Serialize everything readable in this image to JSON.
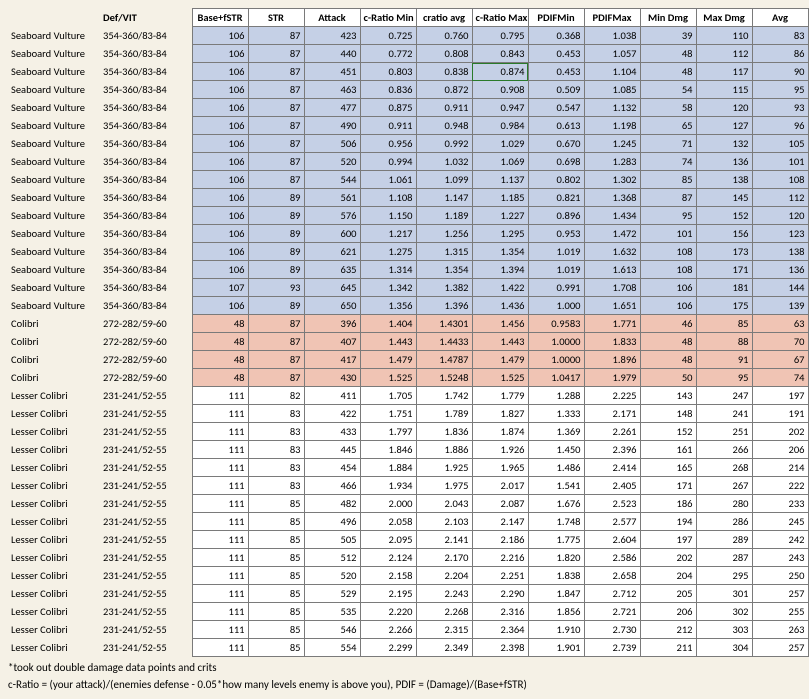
{
  "columns": [
    "",
    "Def/VIT",
    "Base+fSTR",
    "STR",
    "Attack",
    "c-Ratio Min",
    "cratio avg",
    "c-Ratio Max",
    "PDIFMin",
    "PDIFMax",
    "Min Dmg",
    "Max Dmg",
    "Avg"
  ],
  "highlight": {
    "row": 2,
    "col": 7
  },
  "rows": [
    {
      "cls": "blue",
      "name": "Seaboard Vulture",
      "def": "354-360/83-84",
      "v": [
        "106",
        "87",
        "423",
        "0.725",
        "0.760",
        "0.795",
        "0.368",
        "1.038",
        "39",
        "110",
        "83"
      ]
    },
    {
      "cls": "blue",
      "name": "Seaboard Vulture",
      "def": "354-360/83-84",
      "v": [
        "106",
        "87",
        "440",
        "0.772",
        "0.808",
        "0.843",
        "0.453",
        "1.057",
        "48",
        "112",
        "86"
      ]
    },
    {
      "cls": "blue",
      "name": "Seaboard Vulture",
      "def": "354-360/83-84",
      "v": [
        "106",
        "87",
        "451",
        "0.803",
        "0.838",
        "0.874",
        "0.453",
        "1.104",
        "48",
        "117",
        "90"
      ]
    },
    {
      "cls": "blue",
      "name": "Seaboard Vulture",
      "def": "354-360/83-84",
      "v": [
        "106",
        "87",
        "463",
        "0.836",
        "0.872",
        "0.908",
        "0.509",
        "1.085",
        "54",
        "115",
        "95"
      ]
    },
    {
      "cls": "blue",
      "name": "Seaboard Vulture",
      "def": "354-360/83-84",
      "v": [
        "106",
        "87",
        "477",
        "0.875",
        "0.911",
        "0.947",
        "0.547",
        "1.132",
        "58",
        "120",
        "93"
      ]
    },
    {
      "cls": "blue",
      "name": "Seaboard Vulture",
      "def": "354-360/83-84",
      "v": [
        "106",
        "87",
        "490",
        "0.911",
        "0.948",
        "0.984",
        "0.613",
        "1.198",
        "65",
        "127",
        "96"
      ]
    },
    {
      "cls": "blue",
      "name": "Seaboard Vulture",
      "def": "354-360/83-84",
      "v": [
        "106",
        "87",
        "506",
        "0.956",
        "0.992",
        "1.029",
        "0.670",
        "1.245",
        "71",
        "132",
        "105"
      ]
    },
    {
      "cls": "blue",
      "name": "Seaboard Vulture",
      "def": "354-360/83-84",
      "v": [
        "106",
        "87",
        "520",
        "0.994",
        "1.032",
        "1.069",
        "0.698",
        "1.283",
        "74",
        "136",
        "101"
      ]
    },
    {
      "cls": "blue",
      "name": "Seaboard Vulture",
      "def": "354-360/83-84",
      "v": [
        "106",
        "87",
        "544",
        "1.061",
        "1.099",
        "1.137",
        "0.802",
        "1.302",
        "85",
        "138",
        "108"
      ]
    },
    {
      "cls": "blue",
      "name": "Seaboard Vulture",
      "def": "354-360/83-84",
      "v": [
        "106",
        "89",
        "561",
        "1.108",
        "1.147",
        "1.185",
        "0.821",
        "1.368",
        "87",
        "145",
        "112"
      ]
    },
    {
      "cls": "blue",
      "name": "Seaboard Vulture",
      "def": "354-360/83-84",
      "v": [
        "106",
        "89",
        "576",
        "1.150",
        "1.189",
        "1.227",
        "0.896",
        "1.434",
        "95",
        "152",
        "120"
      ]
    },
    {
      "cls": "blue",
      "name": "Seaboard Vulture",
      "def": "354-360/83-84",
      "v": [
        "106",
        "89",
        "600",
        "1.217",
        "1.256",
        "1.295",
        "0.953",
        "1.472",
        "101",
        "156",
        "123"
      ]
    },
    {
      "cls": "blue",
      "name": "Seaboard Vulture",
      "def": "354-360/83-84",
      "v": [
        "106",
        "89",
        "621",
        "1.275",
        "1.315",
        "1.354",
        "1.019",
        "1.632",
        "108",
        "173",
        "138"
      ]
    },
    {
      "cls": "blue",
      "name": "Seaboard Vulture",
      "def": "354-360/83-84",
      "v": [
        "106",
        "89",
        "635",
        "1.314",
        "1.354",
        "1.394",
        "1.019",
        "1.613",
        "108",
        "171",
        "136"
      ]
    },
    {
      "cls": "blue",
      "name": "Seaboard Vulture",
      "def": "354-360/83-84",
      "v": [
        "107",
        "93",
        "645",
        "1.342",
        "1.382",
        "1.422",
        "0.991",
        "1.708",
        "106",
        "181",
        "144"
      ]
    },
    {
      "cls": "blue",
      "name": "Seaboard Vulture",
      "def": "354-360/83-84",
      "v": [
        "106",
        "89",
        "650",
        "1.356",
        "1.396",
        "1.436",
        "1.000",
        "1.651",
        "106",
        "175",
        "139"
      ]
    },
    {
      "cls": "pink",
      "name": "Colibri",
      "def": "272-282/59-60",
      "v": [
        "48",
        "87",
        "396",
        "1.404",
        "1.4301",
        "1.456",
        "0.9583",
        "1.771",
        "46",
        "85",
        "63"
      ]
    },
    {
      "cls": "pink",
      "name": "Colibri",
      "def": "272-282/59-60",
      "v": [
        "48",
        "87",
        "407",
        "1.443",
        "1.4433",
        "1.443",
        "1.0000",
        "1.833",
        "48",
        "88",
        "70"
      ]
    },
    {
      "cls": "pink",
      "name": "Colibri",
      "def": "272-282/59-60",
      "v": [
        "48",
        "87",
        "417",
        "1.479",
        "1.4787",
        "1.479",
        "1.0000",
        "1.896",
        "48",
        "91",
        "67"
      ]
    },
    {
      "cls": "pink",
      "name": "Colibri",
      "def": "272-282/59-60",
      "v": [
        "48",
        "87",
        "430",
        "1.525",
        "1.5248",
        "1.525",
        "1.0417",
        "1.979",
        "50",
        "95",
        "74"
      ]
    },
    {
      "cls": "white",
      "name": "Lesser Colibri",
      "def": "231-241/52-55",
      "v": [
        "111",
        "82",
        "411",
        "1.705",
        "1.742",
        "1.779",
        "1.288",
        "2.225",
        "143",
        "247",
        "197"
      ]
    },
    {
      "cls": "white",
      "name": "Lesser Colibri",
      "def": "231-241/52-55",
      "v": [
        "111",
        "83",
        "422",
        "1.751",
        "1.789",
        "1.827",
        "1.333",
        "2.171",
        "148",
        "241",
        "191"
      ]
    },
    {
      "cls": "white",
      "name": "Lesser Colibri",
      "def": "231-241/52-55",
      "v": [
        "111",
        "83",
        "433",
        "1.797",
        "1.836",
        "1.874",
        "1.369",
        "2.261",
        "152",
        "251",
        "202"
      ]
    },
    {
      "cls": "white",
      "name": "Lesser Colibri",
      "def": "231-241/52-55",
      "v": [
        "111",
        "83",
        "445",
        "1.846",
        "1.886",
        "1.926",
        "1.450",
        "2.396",
        "161",
        "266",
        "206"
      ]
    },
    {
      "cls": "white",
      "name": "Lesser Colibri",
      "def": "231-241/52-55",
      "v": [
        "111",
        "83",
        "454",
        "1.884",
        "1.925",
        "1.965",
        "1.486",
        "2.414",
        "165",
        "268",
        "214"
      ]
    },
    {
      "cls": "white",
      "name": "Lesser Colibri",
      "def": "231-241/52-55",
      "v": [
        "111",
        "83",
        "466",
        "1.934",
        "1.975",
        "2.017",
        "1.541",
        "2.405",
        "171",
        "267",
        "222"
      ]
    },
    {
      "cls": "white",
      "name": "Lesser Colibri",
      "def": "231-241/52-55",
      "v": [
        "111",
        "85",
        "482",
        "2.000",
        "2.043",
        "2.087",
        "1.676",
        "2.523",
        "186",
        "280",
        "233"
      ]
    },
    {
      "cls": "white",
      "name": "Lesser Colibri",
      "def": "231-241/52-55",
      "v": [
        "111",
        "85",
        "496",
        "2.058",
        "2.103",
        "2.147",
        "1.748",
        "2.577",
        "194",
        "286",
        "245"
      ]
    },
    {
      "cls": "white",
      "name": "Lesser Colibri",
      "def": "231-241/52-55",
      "v": [
        "111",
        "85",
        "505",
        "2.095",
        "2.141",
        "2.186",
        "1.775",
        "2.604",
        "197",
        "289",
        "242"
      ]
    },
    {
      "cls": "white",
      "name": "Lesser Colibri",
      "def": "231-241/52-55",
      "v": [
        "111",
        "85",
        "512",
        "2.124",
        "2.170",
        "2.216",
        "1.820",
        "2.586",
        "202",
        "287",
        "243"
      ]
    },
    {
      "cls": "white",
      "name": "Lesser Colibri",
      "def": "231-241/52-55",
      "v": [
        "111",
        "85",
        "520",
        "2.158",
        "2.204",
        "2.251",
        "1.838",
        "2.658",
        "204",
        "295",
        "250"
      ]
    },
    {
      "cls": "white",
      "name": "Lesser Colibri",
      "def": "231-241/52-55",
      "v": [
        "111",
        "85",
        "529",
        "2.195",
        "2.243",
        "2.290",
        "1.847",
        "2.712",
        "205",
        "301",
        "257"
      ]
    },
    {
      "cls": "white",
      "name": "Lesser Colibri",
      "def": "231-241/52-55",
      "v": [
        "111",
        "85",
        "535",
        "2.220",
        "2.268",
        "2.316",
        "1.856",
        "2.721",
        "206",
        "302",
        "255"
      ]
    },
    {
      "cls": "white",
      "name": "Lesser Colibri",
      "def": "231-241/52-55",
      "v": [
        "111",
        "85",
        "546",
        "2.266",
        "2.315",
        "2.364",
        "1.910",
        "2.730",
        "212",
        "303",
        "263"
      ]
    },
    {
      "cls": "white",
      "name": "Lesser Colibri",
      "def": "231-241/52-55",
      "v": [
        "111",
        "85",
        "554",
        "2.299",
        "2.349",
        "2.398",
        "1.901",
        "2.739",
        "211",
        "304",
        "257"
      ]
    }
  ],
  "footnote1": "*took out double damage data points and crits",
  "footnote2": "c-Ratio = (your attack)/(enemies defense - 0.05*how many levels enemy is above you), PDIF = (Damage)/(Base+fSTR)"
}
